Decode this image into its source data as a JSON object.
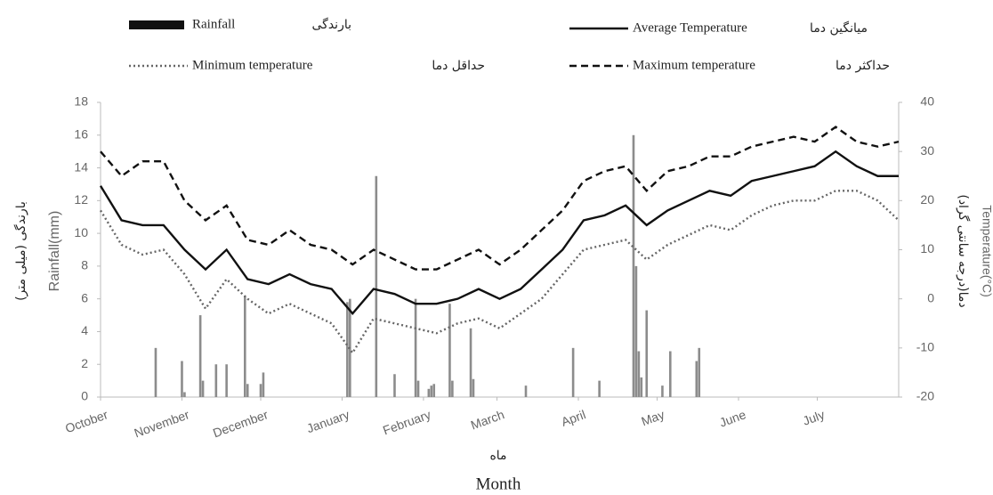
{
  "chart_data": {
    "type": "combo",
    "xlabel": "Month",
    "xlabel_fa": "ماه",
    "ylabel": "Rainfall(mm)",
    "ylabel_fa": "بارندگی (میلی متر)",
    "y2label": "Temperature(°C)",
    "y2label_fa": "دما(درجه سانتی گراد)",
    "xlim": [
      0,
      304
    ],
    "xticks": [
      {
        "value": 0,
        "label": "October"
      },
      {
        "value": 31,
        "label": "November"
      },
      {
        "value": 61,
        "label": "December"
      },
      {
        "value": 92,
        "label": "January"
      },
      {
        "value": 123,
        "label": "February"
      },
      {
        "value": 151,
        "label": "March"
      },
      {
        "value": 182,
        "label": "April"
      },
      {
        "value": 212,
        "label": "May"
      },
      {
        "value": 243,
        "label": "June"
      },
      {
        "value": 273,
        "label": "July"
      }
    ],
    "ylim": [
      0,
      18
    ],
    "yticks": [
      0,
      2,
      4,
      6,
      8,
      10,
      12,
      14,
      16,
      18
    ],
    "y2lim": [
      -20,
      40
    ],
    "y2ticks": [
      -20,
      -10,
      0,
      10,
      20,
      30,
      40
    ],
    "x": [
      0,
      8,
      16,
      24,
      32,
      40,
      48,
      56,
      64,
      72,
      80,
      88,
      96,
      104,
      112,
      120,
      128,
      136,
      144,
      152,
      160,
      168,
      176,
      184,
      192,
      200,
      208,
      216,
      224,
      232,
      240,
      248,
      256,
      264,
      272,
      280,
      288,
      296,
      304
    ],
    "series": [
      {
        "name": "Rainfall",
        "name_fa": "بارندگی",
        "type": "bar",
        "color": "#8c8c8c",
        "x": [
          21,
          31,
          32,
          38,
          39,
          44,
          48,
          55,
          56,
          61,
          62,
          94,
          95,
          105,
          112,
          120,
          121,
          125,
          126,
          127,
          133,
          134,
          141,
          142,
          162,
          180,
          190,
          203,
          204,
          205,
          206,
          208,
          214,
          217,
          227,
          228
        ],
        "values": [
          3,
          2.2,
          0.3,
          5,
          1,
          2,
          2,
          6.2,
          0.8,
          0.8,
          1.5,
          5.8,
          6,
          13.5,
          1.4,
          6,
          1,
          0.5,
          0.7,
          0.8,
          5.7,
          1,
          4.2,
          1.1,
          0.7,
          3,
          1,
          16,
          8,
          2.8,
          1.2,
          5.3,
          0.7,
          2.8,
          2.2,
          3
        ]
      },
      {
        "name": "Average Temperature",
        "name_fa": "میانگین دما",
        "type": "line",
        "dash": "solid",
        "color": "#111",
        "axis": "y2",
        "values": [
          23,
          16,
          15,
          15,
          10,
          6,
          10,
          4,
          3,
          5,
          3,
          2,
          -3,
          2,
          1,
          -1,
          -1,
          0,
          2,
          0,
          2,
          6,
          10,
          16,
          17,
          19,
          15,
          18,
          20,
          22,
          21,
          24,
          25,
          26,
          27,
          30,
          27,
          25,
          25
        ]
      },
      {
        "name": "Minimum temperature",
        "name_fa": "حداقل دما",
        "type": "line",
        "dash": "dotted",
        "color": "#666",
        "axis": "y2",
        "values": [
          18,
          11,
          9,
          10,
          5,
          -2,
          4,
          0,
          -3,
          -1,
          -3,
          -5,
          -11,
          -4,
          -5,
          -6,
          -7,
          -5,
          -4,
          -6,
          -3,
          0,
          5,
          10,
          11,
          12,
          8,
          11,
          13,
          15,
          14,
          17,
          19,
          20,
          20,
          22,
          22,
          20,
          16
        ]
      },
      {
        "name": "Maximum temperature",
        "name_fa": "حداکثر دما",
        "type": "line",
        "dash": "dashed",
        "color": "#111",
        "axis": "y2",
        "values": [
          30,
          25,
          28,
          28,
          20,
          16,
          19,
          12,
          11,
          14,
          11,
          10,
          7,
          10,
          8,
          6,
          6,
          8,
          10,
          7,
          10,
          14,
          18,
          24,
          26,
          27,
          22,
          26,
          27,
          29,
          29,
          31,
          32,
          33,
          32,
          35,
          32,
          31,
          32
        ]
      }
    ]
  }
}
